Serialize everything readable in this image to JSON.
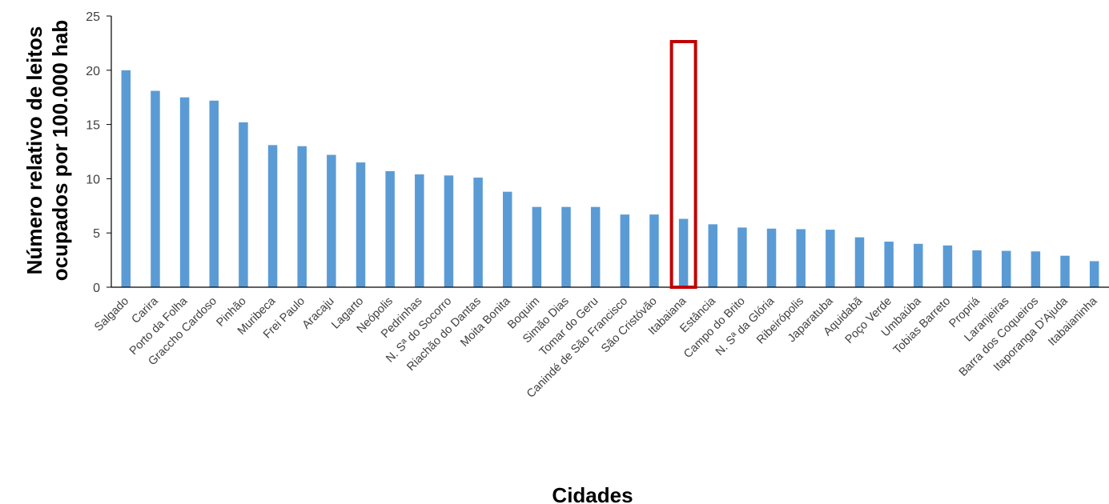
{
  "chart_data": {
    "type": "bar",
    "xlabel": "Cidades",
    "ylabel": [
      "Número relativo de leitos",
      "ocupados por 100.000 hab"
    ],
    "ylim": [
      0,
      25
    ],
    "yticks": [
      0,
      5,
      10,
      15,
      20,
      25
    ],
    "grid": false,
    "legend": "none",
    "bar_color": "#5b9bd5",
    "highlight_color": "#c00000",
    "highlight_category": "Itabaiana",
    "categories": [
      "Salgado",
      "Carira",
      "Porto da Folha",
      "Graccho Cardoso",
      "Pinhão",
      "Muribeca",
      "Frei Paulo",
      "Aracaju",
      "Lagarto",
      "Neópolis",
      "Pedrinhas",
      "N. Sª do Socorro",
      "Riachão do Dantas",
      "Moita Bonita",
      "Boquim",
      "Simão Dias",
      "Tomar do Geru",
      "Canindé de São Francisco",
      "São Cristóvão",
      "Itabaiana",
      "Estância",
      "Campo do Brito",
      "N. Sª da Glória",
      "Ribeirópolis",
      "Japaratuba",
      "Aquidabã",
      "Poço Verde",
      "Umbaúba",
      "Tobias Barreto",
      "Propriá",
      "Laranjeiras",
      "Barra dos Coqueiros",
      "Itaporanga D'Ajuda",
      "Itabaianinha"
    ],
    "values": [
      20.0,
      18.1,
      17.5,
      17.2,
      15.2,
      13.1,
      13.0,
      12.2,
      11.5,
      10.7,
      10.4,
      10.3,
      10.1,
      8.8,
      7.4,
      7.4,
      7.4,
      6.7,
      6.7,
      6.3,
      5.8,
      5.5,
      5.4,
      5.35,
      5.3,
      4.6,
      4.2,
      4.0,
      3.85,
      3.4,
      3.35,
      3.3,
      2.9,
      2.4
    ]
  }
}
